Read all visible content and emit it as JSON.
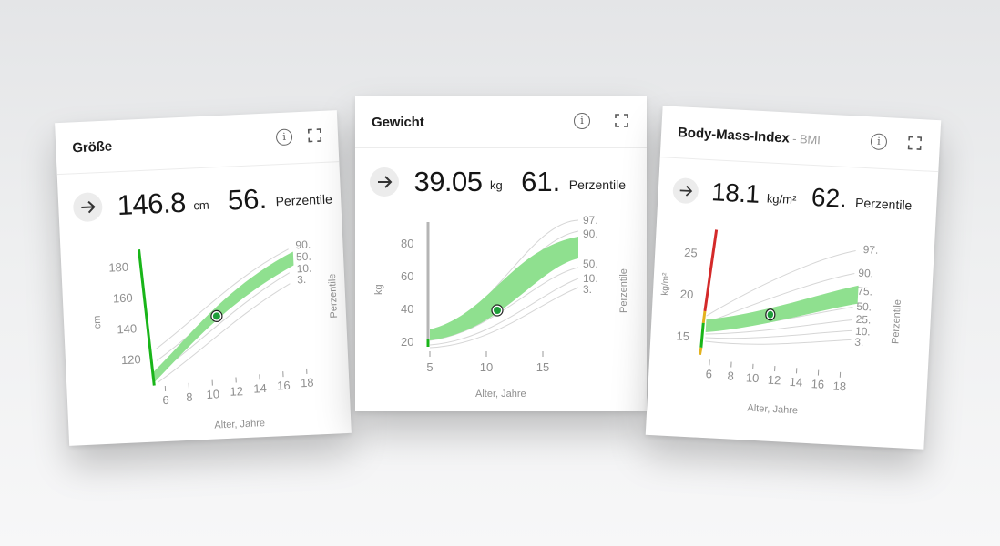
{
  "cards": {
    "height": {
      "title": "Größe",
      "value": "146.8",
      "unit": "cm",
      "percentile": "56.",
      "percentile_label": "Perzentile",
      "y_unit": "cm",
      "x_label": "Alter, Jahre",
      "right_label": "Perzentile",
      "y_ticks": [
        "120",
        "140",
        "160",
        "180"
      ],
      "x_ticks": [
        "6",
        "8",
        "10",
        "12",
        "14",
        "16",
        "18"
      ],
      "percentile_curves": [
        "90.",
        "50.",
        "10.",
        "3."
      ]
    },
    "weight": {
      "title": "Gewicht",
      "value": "39.05",
      "unit": "kg",
      "percentile": "61.",
      "percentile_label": "Perzentile",
      "y_unit": "kg",
      "x_label": "Alter, Jahre",
      "right_label": "Perzentile",
      "y_ticks": [
        "20",
        "40",
        "60",
        "80"
      ],
      "x_ticks": [
        "5",
        "10",
        "15"
      ],
      "percentile_curves": [
        "97.",
        "90.",
        "50.",
        "10.",
        "3."
      ]
    },
    "bmi": {
      "title": "Body-Mass-Index",
      "title_suffix": " - BMI",
      "value": "18.1",
      "unit": "kg/m²",
      "percentile": "62.",
      "percentile_label": "Perzentile",
      "y_unit": "kg/m²",
      "x_label": "Alter, Jahre",
      "right_label": "Perzentile",
      "y_ticks": [
        "15",
        "20",
        "25"
      ],
      "x_ticks": [
        "6",
        "8",
        "10",
        "12",
        "14",
        "16",
        "18"
      ],
      "percentile_curves": [
        "97.",
        "90.",
        "75.",
        "50.",
        "25.",
        "10.",
        "3."
      ]
    }
  },
  "icons": {
    "info": "info-icon",
    "expand": "expand-icon",
    "arrow": "arrow-right-icon",
    "measurement": "measurement-dot-icon"
  },
  "info_glyph": "i",
  "colors": {
    "band": "#8fe08f",
    "marker_fill": "#1e9e3a",
    "grid_line": "#d6d6d6",
    "axis_green": "#19b519",
    "axis_gray": "#b5b5b5",
    "bmi_red": "#d42a2a",
    "bmi_yellow": "#e3b21e"
  }
}
